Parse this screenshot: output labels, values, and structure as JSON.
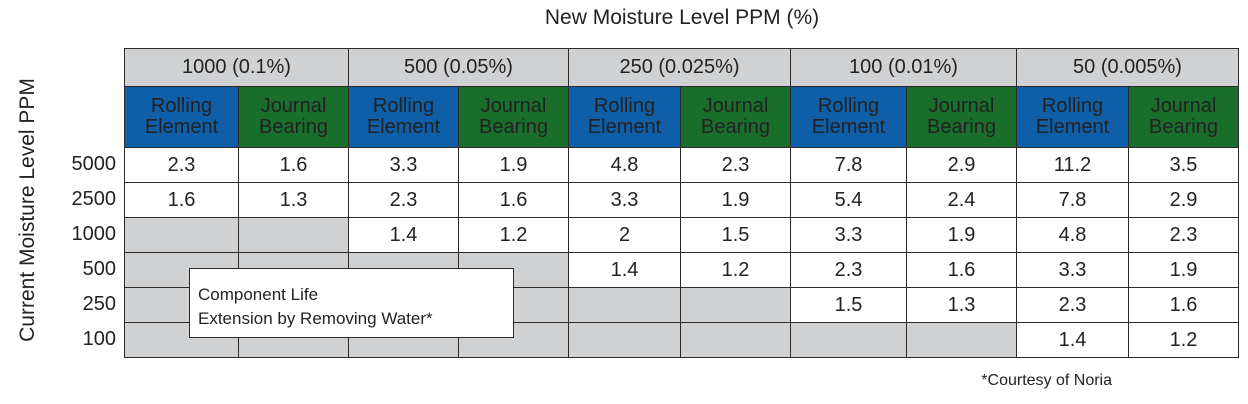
{
  "chart_data": {
    "type": "table",
    "title": "New Moisture Level PPM (%)",
    "ylabel": "Current  Moisture Level PPM",
    "column_groups": [
      "1000 (0.1%)",
      "500 (0.05%)",
      "250 (0.025%)",
      "100 (0.01%)",
      "50 (0.005%)"
    ],
    "bearing_types": [
      {
        "line1": "Rolling",
        "line2": "Element",
        "color": "#0f5ea8"
      },
      {
        "line1": "Journal",
        "line2": "Bearing",
        "color": "#1a6e2c"
      }
    ],
    "rows": [
      {
        "label": "5000",
        "values": [
          "2.3",
          "1.6",
          "3.3",
          "1.9",
          "4.8",
          "2.3",
          "7.8",
          "2.9",
          "11.2",
          "3.5"
        ]
      },
      {
        "label": "2500",
        "values": [
          "1.6",
          "1.3",
          "2.3",
          "1.6",
          "3.3",
          "1.9",
          "5.4",
          "2.4",
          "7.8",
          "2.9"
        ]
      },
      {
        "label": "1000",
        "values": [
          null,
          null,
          "1.4",
          "1.2",
          "2",
          "1.5",
          "3.3",
          "1.9",
          "4.8",
          "2.3"
        ]
      },
      {
        "label": "500",
        "values": [
          null,
          null,
          null,
          null,
          "1.4",
          "1.2",
          "2.3",
          "1.6",
          "3.3",
          "1.9"
        ]
      },
      {
        "label": "250",
        "values": [
          null,
          null,
          null,
          null,
          null,
          null,
          "1.5",
          "1.3",
          "2.3",
          "1.6"
        ]
      },
      {
        "label": "100",
        "values": [
          null,
          null,
          null,
          null,
          null,
          null,
          null,
          null,
          "1.4",
          "1.2"
        ]
      }
    ],
    "note_lines": [
      "Component Life",
      "Extension by Removing Water*"
    ],
    "courtesy": "*Courtesy of Noria",
    "colors": {
      "blank_cell": "#d0d1d3",
      "header_band": "#d0d1d3"
    }
  }
}
